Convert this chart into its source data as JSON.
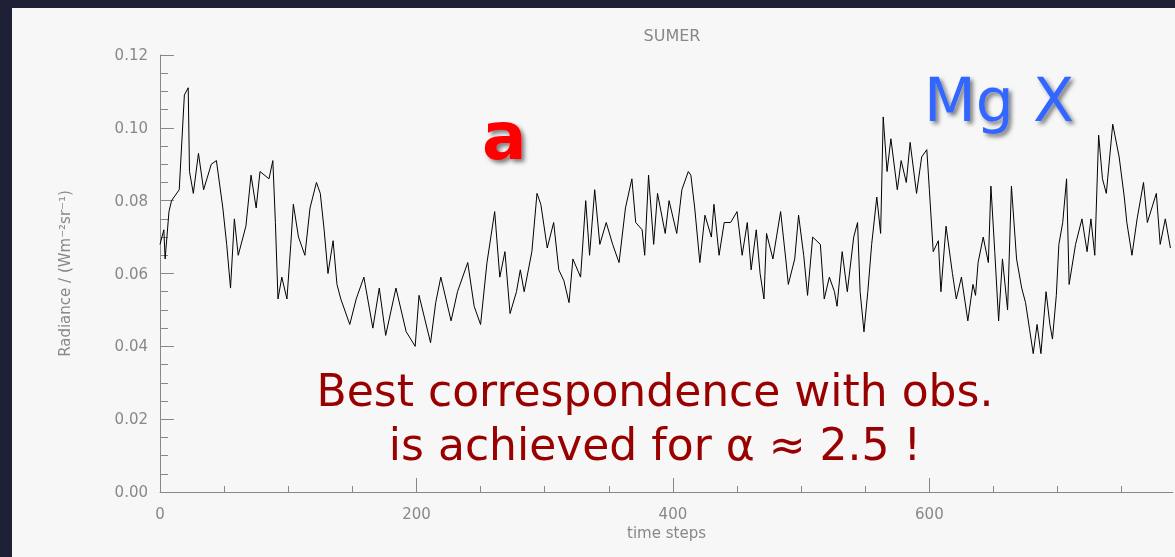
{
  "chart_data": {
    "type": "line",
    "title": "SUMER",
    "xlabel": "time steps",
    "ylabel": "Radiance / (Wm⁻²sr⁻¹)",
    "xlim": [
      0,
      790
    ],
    "xticks": [
      0,
      200,
      400,
      600
    ],
    "ylim": [
      0,
      0.12
    ],
    "yticks": [
      {
        "value": 0,
        "label": "0.00"
      },
      0.02,
      0.04,
      0.06,
      0.08,
      {
        "value": 0.1,
        "label": "0.10"
      },
      0.12
    ],
    "grid": false,
    "marker": "none",
    "line_style": "solid",
    "annotations": [
      "a",
      "Mg X",
      "Best correspondence with obs.\nis achieved for α ≈ 2.5 !"
    ],
    "series": [
      {
        "color": "#000000",
        "x": [
          0,
          3,
          4,
          7,
          9,
          15,
          19,
          22,
          23,
          26,
          30,
          34,
          40,
          44,
          49,
          52,
          55,
          58,
          61,
          67,
          71,
          75,
          78,
          85,
          88,
          90,
          92,
          95,
          99,
          102,
          104,
          108,
          113,
          117,
          122,
          125,
          128,
          131,
          135,
          138,
          141,
          148,
          153,
          159,
          166,
          171,
          176,
          184,
          192,
          199,
          202,
          211,
          215,
          219,
          227,
          232,
          240,
          245,
          250,
          255,
          261,
          265,
          269,
          273,
          278,
          281,
          284,
          290,
          294,
          297,
          302,
          307,
          311,
          315,
          319,
          322,
          328,
          332,
          335,
          339,
          343,
          348,
          353,
          358,
          363,
          368,
          371,
          376,
          378,
          381,
          385,
          388,
          394,
          397,
          403,
          407,
          412,
          414,
          417,
          421,
          425,
          430,
          432,
          436,
          440,
          445,
          450,
          454,
          458,
          461,
          465,
          468,
          471,
          473,
          478,
          484,
          488,
          490,
          495,
          498,
          502,
          505,
          509,
          515,
          518,
          522,
          526,
          528,
          532,
          536,
          541,
          544,
          546,
          549,
          552,
          555,
          559,
          562,
          564,
          567,
          570,
          575,
          578,
          582,
          585,
          590,
          594,
          598,
          600,
          603,
          607,
          609,
          613,
          618,
          621,
          625,
          630,
          634,
          636,
          638,
          642,
          646,
          648,
          651,
          654,
          657,
          661,
          664,
          668,
          672,
          675,
          678,
          681,
          684,
          687,
          691,
          694,
          696,
          699,
          701,
          704,
          707,
          709,
          714,
          719,
          723,
          726,
          729,
          732,
          735,
          738,
          743,
          748,
          752,
          754,
          758,
          762,
          767,
          770,
          777,
          780,
          784,
          788
        ],
        "values": [
          0.068,
          0.072,
          0.064,
          0.077,
          0.08,
          0.083,
          0.109,
          0.111,
          0.088,
          0.082,
          0.093,
          0.083,
          0.09,
          0.091,
          0.078,
          0.068,
          0.056,
          0.075,
          0.065,
          0.073,
          0.087,
          0.078,
          0.088,
          0.086,
          0.091,
          0.074,
          0.053,
          0.059,
          0.053,
          0.068,
          0.079,
          0.07,
          0.065,
          0.078,
          0.085,
          0.082,
          0.072,
          0.06,
          0.069,
          0.057,
          0.053,
          0.046,
          0.053,
          0.059,
          0.045,
          0.056,
          0.043,
          0.056,
          0.044,
          0.04,
          0.054,
          0.041,
          0.052,
          0.059,
          0.047,
          0.055,
          0.063,
          0.051,
          0.046,
          0.063,
          0.077,
          0.059,
          0.066,
          0.049,
          0.055,
          0.061,
          0.055,
          0.066,
          0.082,
          0.079,
          0.067,
          0.074,
          0.061,
          0.058,
          0.052,
          0.064,
          0.059,
          0.08,
          0.065,
          0.083,
          0.068,
          0.074,
          0.068,
          0.063,
          0.078,
          0.086,
          0.074,
          0.072,
          0.065,
          0.087,
          0.068,
          0.082,
          0.071,
          0.08,
          0.071,
          0.083,
          0.088,
          0.087,
          0.078,
          0.063,
          0.076,
          0.07,
          0.079,
          0.065,
          0.074,
          0.074,
          0.077,
          0.065,
          0.074,
          0.061,
          0.072,
          0.06,
          0.053,
          0.071,
          0.064,
          0.077,
          0.064,
          0.057,
          0.064,
          0.076,
          0.065,
          0.054,
          0.07,
          0.068,
          0.053,
          0.059,
          0.055,
          0.051,
          0.066,
          0.055,
          0.07,
          0.074,
          0.055,
          0.044,
          0.055,
          0.068,
          0.081,
          0.071,
          0.103,
          0.088,
          0.097,
          0.083,
          0.091,
          0.085,
          0.096,
          0.082,
          0.092,
          0.094,
          0.083,
          0.066,
          0.069,
          0.055,
          0.073,
          0.06,
          0.053,
          0.059,
          0.047,
          0.057,
          0.054,
          0.063,
          0.07,
          0.063,
          0.084,
          0.066,
          0.047,
          0.064,
          0.05,
          0.084,
          0.064,
          0.056,
          0.052,
          0.045,
          0.038,
          0.046,
          0.038,
          0.055,
          0.046,
          0.042,
          0.054,
          0.068,
          0.074,
          0.086,
          0.057,
          0.068,
          0.075,
          0.066,
          0.075,
          0.065,
          0.098,
          0.086,
          0.082,
          0.101,
          0.092,
          0.081,
          0.074,
          0.065,
          0.075,
          0.085,
          0.074,
          0.082,
          0.068,
          0.075,
          0.067
        ]
      }
    ]
  }
}
